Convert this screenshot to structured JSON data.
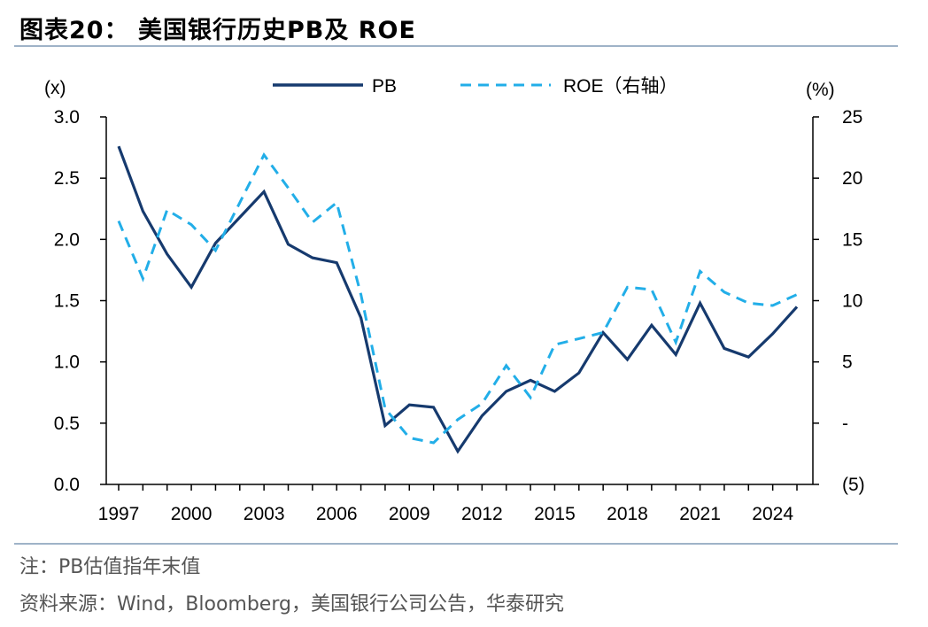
{
  "title": "图表20： 美国银行历史PB及 ROE",
  "notes": {
    "note": "注：PB估值指年末值",
    "source": "资料来源：Wind，Bloomberg，美国银行公司公告，华泰研究"
  },
  "colors": {
    "pb": "#163a6e",
    "roe": "#22aee8",
    "axis": "#000000",
    "rule": "#9fb3c8"
  },
  "chart_data": {
    "type": "line",
    "legend_position": "top-center",
    "grid": false,
    "left_axis": {
      "unit_label": "(x)",
      "range": [
        0,
        3
      ],
      "ticks": [
        0,
        0.5,
        1,
        1.5,
        2,
        2.5,
        3
      ],
      "tick_labels": [
        "0.0",
        "0.5",
        "1.0",
        "1.5",
        "2.0",
        "2.5",
        "3.0"
      ]
    },
    "right_axis": {
      "unit_label": "(%)",
      "range": [
        -5,
        25
      ],
      "ticks": [
        -5,
        0,
        5,
        10,
        15,
        20,
        25
      ],
      "tick_labels": [
        "(5)",
        "-",
        "5",
        "10",
        "15",
        "20",
        "25"
      ]
    },
    "x_axis": {
      "range": [
        1997,
        2025
      ],
      "tick_labels": [
        "1997",
        "2000",
        "2003",
        "2006",
        "2009",
        "2012",
        "2015",
        "2018",
        "2021",
        "2024"
      ]
    },
    "x": [
      1997,
      1998,
      1999,
      2000,
      2001,
      2002,
      2003,
      2004,
      2005,
      2006,
      2007,
      2008,
      2009,
      2010,
      2011,
      2012,
      2013,
      2014,
      2015,
      2016,
      2017,
      2018,
      2019,
      2020,
      2021,
      2022,
      2023,
      2024,
      2025
    ],
    "series": [
      {
        "name": "PB",
        "axis": "left",
        "style": "solid",
        "values": [
          2.76,
          2.23,
          1.88,
          1.61,
          1.97,
          2.18,
          2.39,
          1.96,
          1.85,
          1.81,
          1.36,
          0.48,
          0.65,
          0.63,
          0.27,
          0.56,
          0.76,
          0.85,
          0.76,
          0.91,
          1.24,
          1.02,
          1.3,
          1.06,
          1.48,
          1.11,
          1.04,
          1.23,
          1.45
        ]
      },
      {
        "name": "ROE（右轴）",
        "axis": "right",
        "style": "dashed",
        "values": [
          16.5,
          11.8,
          17.4,
          16.2,
          14.1,
          18.0,
          21.9,
          19.2,
          16.4,
          18.0,
          10.5,
          1.2,
          -1.2,
          -1.6,
          0.3,
          1.6,
          4.7,
          2.1,
          6.4,
          6.9,
          7.4,
          11.1,
          10.9,
          6.6,
          12.4,
          10.7,
          9.8,
          9.6,
          10.5
        ]
      }
    ]
  }
}
